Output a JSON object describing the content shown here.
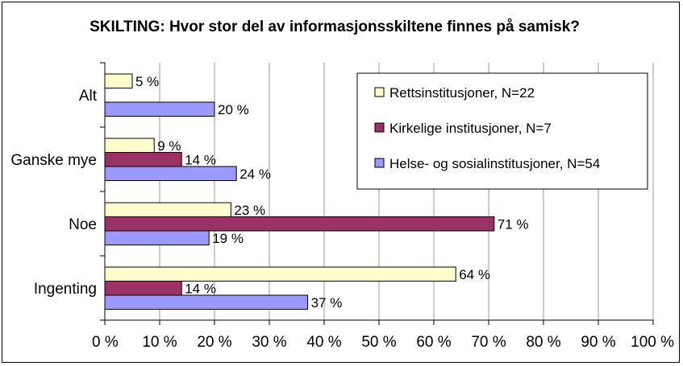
{
  "chart_data": {
    "type": "bar",
    "orientation": "horizontal",
    "title": "SKILTING: Hvor stor del av informasjonsskiltene finnes på samisk?",
    "categories": [
      "Alt",
      "Ganske mye",
      "Noe",
      "Ingenting"
    ],
    "series": [
      {
        "name": "Rettsinstitusjoner, N=22",
        "color": "#ffffcc",
        "values": [
          5,
          9,
          23,
          64
        ],
        "labels": [
          "5 %",
          "9 %",
          "23 %",
          "64 %"
        ]
      },
      {
        "name": "Kirkelige institusjoner, N=7",
        "color": "#993366",
        "values": [
          null,
          14,
          71,
          14
        ],
        "labels": [
          "",
          "14 %",
          "71 %",
          "14 %"
        ]
      },
      {
        "name": "Helse- og sosialinstitusjoner, N=54",
        "color": "#9999ff",
        "values": [
          20,
          24,
          19,
          37
        ],
        "labels": [
          "20 %",
          "24 %",
          "19 %",
          "37 %"
        ]
      }
    ],
    "xlim": [
      0,
      100
    ],
    "x_ticks": [
      "0 %",
      "10 %",
      "20 %",
      "30 %",
      "40 %",
      "50 %",
      "60 %",
      "70 %",
      "80 %",
      "90 %",
      "100 %"
    ],
    "xlabel": "",
    "ylabel": "",
    "grid": true,
    "legend_position": "top-right"
  }
}
